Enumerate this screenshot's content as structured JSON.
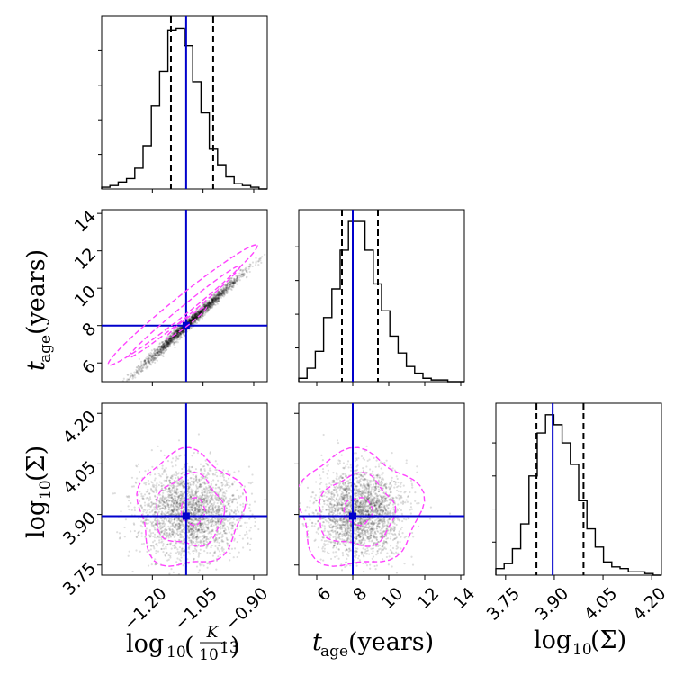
{
  "chart_data": {
    "type": "corner",
    "parameters": [
      {
        "key": "logK",
        "label": "log10",
        "label_fraction_num": "K",
        "label_fraction_den": "10",
        "label_fraction_den_exp": "13",
        "range": [
          -1.35,
          -0.86
        ],
        "ticks": [
          -1.2,
          -1.05,
          -0.9
        ],
        "tick_labels": [
          "−1.20",
          "−1.05",
          "−0.90"
        ]
      },
      {
        "key": "tage",
        "label_main": "t",
        "label_sub": "age",
        "label_unit": " (years)",
        "range": [
          5.0,
          14.2
        ],
        "ticks": [
          6,
          8,
          10,
          12,
          14
        ],
        "tick_labels": [
          "6",
          "8",
          "10",
          "12",
          "14"
        ]
      },
      {
        "key": "logSigma",
        "label": "log10(Σ)",
        "label_base": "log",
        "label_base_sub": "10",
        "label_arg": "(Σ)",
        "range": [
          3.72,
          4.23
        ],
        "ticks": [
          3.75,
          3.9,
          4.05,
          4.2
        ],
        "tick_labels": [
          "3.75",
          "3.90",
          "4.05",
          "4.20"
        ]
      }
    ],
    "truths": {
      "logK": -1.1,
      "tage": 8.0,
      "logSigma": 3.895
    },
    "quantiles": {
      "logK": [
        -1.145,
        -1.02
      ],
      "tage": [
        7.4,
        9.4
      ],
      "logSigma": [
        3.845,
        3.99
      ]
    },
    "histograms": {
      "logK": {
        "edges_start": -1.35,
        "bin_width": 0.0245,
        "counts": [
          1,
          2,
          4,
          6,
          12,
          25,
          48,
          68,
          92,
          93,
          83,
          62,
          44,
          23,
          14,
          7,
          3,
          2,
          1,
          0
        ]
      },
      "tage": {
        "edges_start": 5.0,
        "bin_width": 0.46,
        "counts": [
          2,
          8,
          18,
          38,
          55,
          78,
          95,
          95,
          78,
          58,
          42,
          27,
          17,
          9,
          5,
          2,
          1,
          1,
          0,
          0
        ]
      },
      "logSigma": {
        "edges_start": 3.72,
        "bin_width": 0.0255,
        "counts": [
          4,
          7,
          16,
          31,
          60,
          86,
          97,
          91,
          80,
          67,
          45,
          28,
          17,
          8,
          5,
          4,
          2,
          2,
          1,
          0
        ]
      }
    },
    "hist_ymax": {
      "logK": 100,
      "tage": 102,
      "logSigma": 104
    },
    "hist_yticks": [
      20,
      40,
      60,
      80
    ],
    "contour_color": "#ff44ff",
    "truth_color": "#0000cc",
    "quantile_color": "#000000",
    "scatter_color": "#000000"
  }
}
